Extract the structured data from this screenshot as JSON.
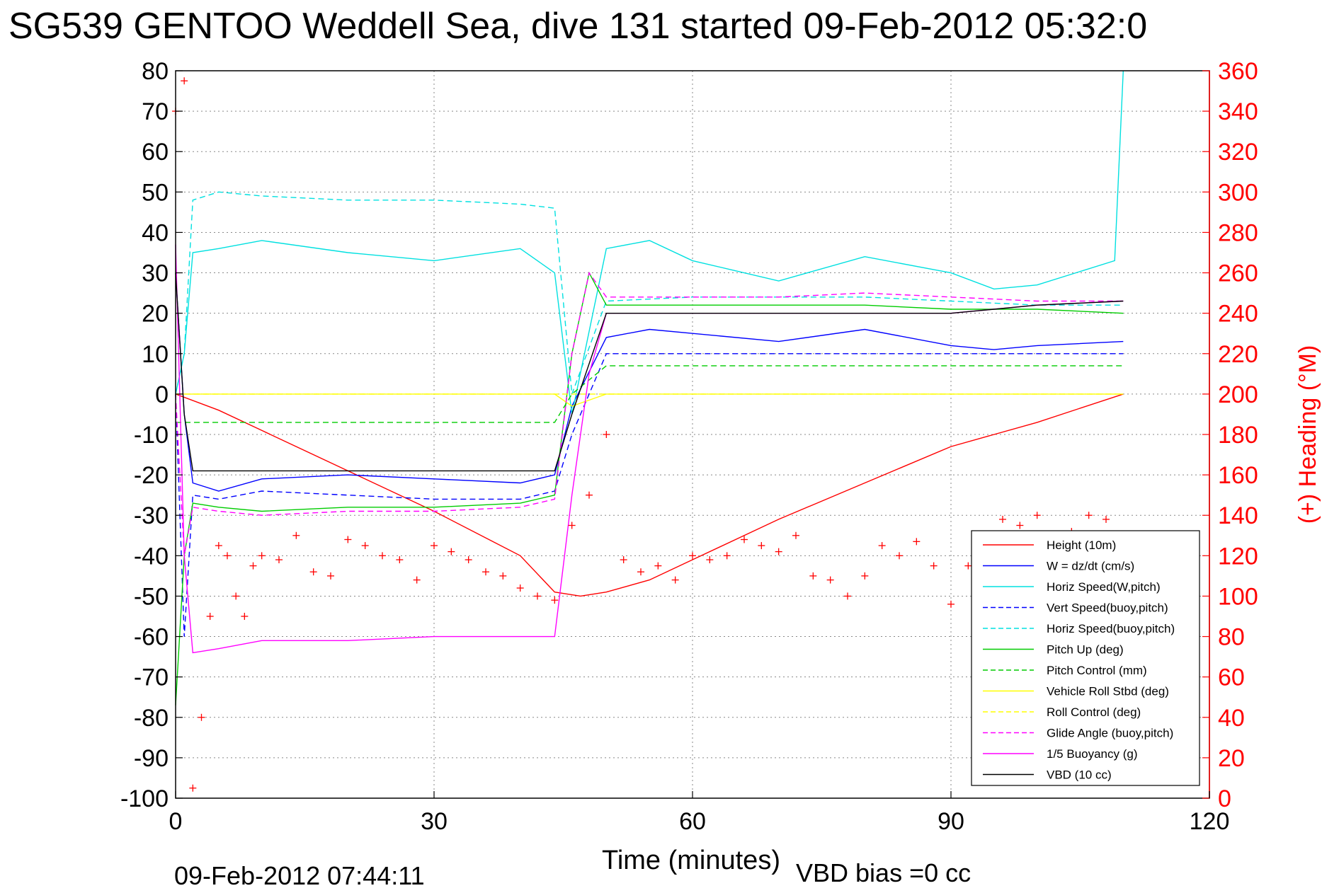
{
  "chart_data": {
    "type": "line",
    "title": "SG539 GENTOO Weddell Sea, dive 131 started 09-Feb-2012 05:32:0",
    "xlabel": "Time (minutes)",
    "ylabel_right": "(+) Heading (°M)",
    "footer_timestamp": "09-Feb-2012 07:44:11",
    "footer_note": "VBD bias =0 cc",
    "xlim": [
      0,
      120
    ],
    "ylim": [
      -100,
      80
    ],
    "ylim_right": [
      0,
      360
    ],
    "x_ticks": [
      0,
      30,
      60,
      90,
      120
    ],
    "y_ticks": [
      80,
      70,
      60,
      50,
      40,
      30,
      20,
      10,
      0,
      -10,
      -20,
      -30,
      -40,
      -50,
      -60,
      -70,
      -80,
      -90,
      -100
    ],
    "y_ticks_right": [
      360,
      340,
      320,
      300,
      280,
      260,
      240,
      220,
      200,
      180,
      160,
      140,
      120,
      100,
      80,
      60,
      40,
      20,
      0
    ],
    "grid": true,
    "legend_position": "bottom-right",
    "colors": {
      "axis": "#000000",
      "right_axis": "#ff0000",
      "grid": "#888888"
    },
    "series": [
      {
        "name": "Height (10m)",
        "color": "#ff0000",
        "style": "solid",
        "x": [
          0,
          5,
          10,
          20,
          30,
          40,
          44,
          47,
          50,
          55,
          60,
          70,
          80,
          90,
          100,
          110
        ],
        "y": [
          0,
          -4,
          -9,
          -19,
          -29,
          -40,
          -49,
          -50,
          -49,
          -46,
          -41,
          -31,
          -22,
          -13,
          -7,
          0
        ]
      },
      {
        "name": "W = dz/dt (cm/s)",
        "color": "#0000ff",
        "style": "solid",
        "x": [
          0,
          1,
          2,
          5,
          10,
          20,
          30,
          40,
          44,
          46,
          50,
          55,
          60,
          70,
          80,
          90,
          95,
          100,
          110
        ],
        "y": [
          30,
          -5,
          -22,
          -24,
          -21,
          -20,
          -21,
          -22,
          -20,
          -3,
          14,
          16,
          15,
          13,
          16,
          12,
          11,
          12,
          13
        ]
      },
      {
        "name": "Horiz Speed(W,pitch)",
        "color": "#00e0e0",
        "style": "solid",
        "x": [
          0,
          1,
          2,
          5,
          10,
          20,
          30,
          40,
          44,
          46,
          50,
          55,
          60,
          70,
          80,
          90,
          95,
          100,
          109,
          110
        ],
        "y": [
          0,
          10,
          35,
          36,
          38,
          35,
          33,
          36,
          30,
          -5,
          36,
          38,
          33,
          28,
          34,
          30,
          26,
          27,
          33,
          80
        ]
      },
      {
        "name": "Vert Speed(buoy,pitch)",
        "color": "#0000ff",
        "style": "dashed",
        "x": [
          0,
          1,
          2,
          5,
          10,
          20,
          30,
          40,
          44,
          46,
          50,
          60,
          70,
          80,
          90,
          100,
          110
        ],
        "y": [
          0,
          -60,
          -25,
          -26,
          -24,
          -25,
          -26,
          -26,
          -24,
          -10,
          10,
          10,
          10,
          10,
          10,
          10,
          10
        ]
      },
      {
        "name": "Horiz Speed(buoy,pitch)",
        "color": "#00e0e0",
        "style": "dashed",
        "x": [
          0,
          1,
          2,
          5,
          10,
          20,
          30,
          40,
          44,
          46,
          50,
          60,
          70,
          80,
          90,
          100,
          110
        ],
        "y": [
          0,
          10,
          48,
          50,
          49,
          48,
          48,
          47,
          46,
          0,
          23,
          24,
          24,
          24,
          23,
          22,
          22
        ]
      },
      {
        "name": "Pitch Up (deg)",
        "color": "#00cc00",
        "style": "solid",
        "x": [
          0,
          1,
          2,
          5,
          10,
          20,
          30,
          40,
          44,
          46,
          48,
          50,
          60,
          70,
          80,
          90,
          100,
          110
        ],
        "y": [
          -77,
          -40,
          -27,
          -28,
          -29,
          -28,
          -28,
          -27,
          -25,
          10,
          30,
          22,
          22,
          22,
          22,
          21,
          21,
          20
        ]
      },
      {
        "name": "Pitch Control (mm)",
        "color": "#00cc00",
        "style": "dashed",
        "x": [
          0,
          2,
          10,
          20,
          30,
          40,
          44,
          46,
          50,
          60,
          70,
          80,
          90,
          100,
          110
        ],
        "y": [
          -7,
          -7,
          -7,
          -7,
          -7,
          -7,
          -7,
          0,
          7,
          7,
          7,
          7,
          7,
          7,
          7
        ]
      },
      {
        "name": "Vehicle Roll Stbd (deg)",
        "color": "#ffff00",
        "style": "solid",
        "x": [
          0,
          2,
          10,
          20,
          30,
          40,
          44,
          46,
          50,
          60,
          70,
          80,
          90,
          100,
          110
        ],
        "y": [
          0,
          0,
          0,
          0,
          0,
          0,
          0,
          -3,
          0,
          0,
          0,
          0,
          0,
          0,
          0
        ]
      },
      {
        "name": "Roll Control (deg)",
        "color": "#ffff00",
        "style": "dashed",
        "x": [
          0,
          2,
          10,
          20,
          30,
          40,
          50,
          60,
          70,
          80,
          90,
          100,
          110
        ],
        "y": [
          0,
          0,
          0,
          0,
          0,
          0,
          0,
          0,
          0,
          0,
          0,
          0,
          0
        ]
      },
      {
        "name": "Glide Angle (buoy,pitch)",
        "color": "#ff00ff",
        "style": "dashed",
        "x": [
          0,
          1,
          2,
          5,
          10,
          20,
          30,
          40,
          44,
          46,
          48,
          50,
          60,
          70,
          80,
          90,
          100,
          110
        ],
        "y": [
          0,
          -40,
          -28,
          -29,
          -30,
          -29,
          -29,
          -28,
          -26,
          10,
          30,
          24,
          24,
          24,
          25,
          24,
          23,
          23
        ]
      },
      {
        "name": "1/5 Buoyancy (g)",
        "color": "#ff00ff",
        "style": "solid",
        "x": [
          0,
          1,
          2,
          5,
          10,
          20,
          30,
          40,
          44,
          46,
          48,
          50,
          60,
          70,
          80,
          90,
          100,
          110
        ],
        "y": [
          37,
          -40,
          -64,
          -63,
          -61,
          -61,
          -60,
          -60,
          -60,
          -25,
          5,
          20,
          20,
          20,
          20,
          20,
          22,
          23
        ]
      },
      {
        "name": "VBD (10 cc)",
        "color": "#000000",
        "style": "solid",
        "x": [
          0,
          1,
          2,
          10,
          20,
          30,
          40,
          44,
          46,
          50,
          60,
          70,
          80,
          90,
          95,
          100,
          110
        ],
        "y": [
          30,
          -5,
          -19,
          -19,
          -19,
          -19,
          -19,
          -19,
          -5,
          20,
          20,
          20,
          20,
          20,
          21,
          22,
          23
        ]
      }
    ],
    "heading": {
      "axis": "right",
      "color": "#ff0000",
      "marker": "+",
      "x": [
        0,
        1,
        2,
        3,
        4,
        5,
        6,
        7,
        8,
        9,
        10,
        12,
        14,
        16,
        18,
        20,
        22,
        24,
        26,
        28,
        30,
        32,
        34,
        36,
        38,
        40,
        42,
        44,
        46,
        48,
        50,
        52,
        54,
        56,
        58,
        60,
        62,
        64,
        66,
        68,
        70,
        72,
        74,
        76,
        78,
        80,
        82,
        84,
        86,
        88,
        90,
        92,
        94,
        96,
        98,
        100,
        102,
        104,
        106,
        108
      ],
      "y": [
        340,
        355,
        5,
        40,
        90,
        125,
        120,
        100,
        90,
        115,
        120,
        118,
        130,
        112,
        110,
        128,
        125,
        120,
        118,
        108,
        125,
        122,
        118,
        112,
        110,
        104,
        100,
        98,
        135,
        150,
        180,
        118,
        112,
        115,
        108,
        120,
        118,
        120,
        128,
        125,
        122,
        130,
        110,
        108,
        100,
        110,
        125,
        120,
        127,
        115,
        96,
        115,
        125,
        138,
        135,
        140,
        130,
        132,
        140,
        138
      ]
    }
  }
}
